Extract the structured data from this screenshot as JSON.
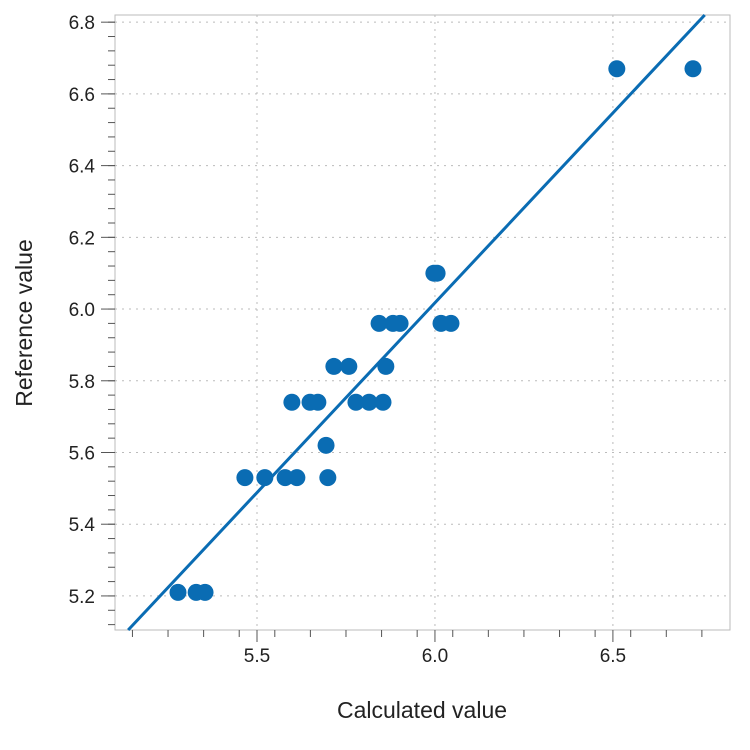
{
  "chart_data": {
    "type": "scatter",
    "xlabel": "Calculated value",
    "ylabel": "Reference value",
    "xlim": [
      5.101,
      6.829
    ],
    "ylim": [
      5.105,
      6.82
    ],
    "x_ticks": [
      5.5,
      6.0,
      6.5
    ],
    "x_tick_labels": [
      "5.5",
      "6.0",
      "6.5"
    ],
    "y_ticks": [
      5.2,
      5.4,
      5.6,
      5.8,
      6.0,
      6.2,
      6.4,
      6.6,
      6.8
    ],
    "y_tick_labels": [
      "5.2",
      "5.4",
      "5.6",
      "5.8",
      "6.0",
      "6.2",
      "6.4",
      "6.6",
      "6.8"
    ],
    "grid": true,
    "color": "#0a6cb3",
    "points": [
      [
        5.278,
        5.21
      ],
      [
        5.329,
        5.21
      ],
      [
        5.354,
        5.21
      ],
      [
        5.466,
        5.53
      ],
      [
        5.522,
        5.53
      ],
      [
        5.579,
        5.53
      ],
      [
        5.612,
        5.53
      ],
      [
        5.699,
        5.53
      ],
      [
        5.694,
        5.62
      ],
      [
        5.598,
        5.74
      ],
      [
        5.649,
        5.74
      ],
      [
        5.671,
        5.74
      ],
      [
        5.778,
        5.74
      ],
      [
        5.815,
        5.74
      ],
      [
        5.854,
        5.74
      ],
      [
        5.716,
        5.84
      ],
      [
        5.758,
        5.84
      ],
      [
        5.862,
        5.84
      ],
      [
        5.843,
        5.96
      ],
      [
        5.882,
        5.96
      ],
      [
        5.902,
        5.96
      ],
      [
        6.017,
        5.96
      ],
      [
        6.045,
        5.96
      ],
      [
        5.997,
        6.1
      ],
      [
        6.006,
        6.1
      ],
      [
        6.511,
        6.67
      ],
      [
        6.725,
        6.67
      ]
    ],
    "fit_line": {
      "x": [
        5.138,
        6.758
      ],
      "y": [
        5.105,
        6.82
      ]
    }
  }
}
